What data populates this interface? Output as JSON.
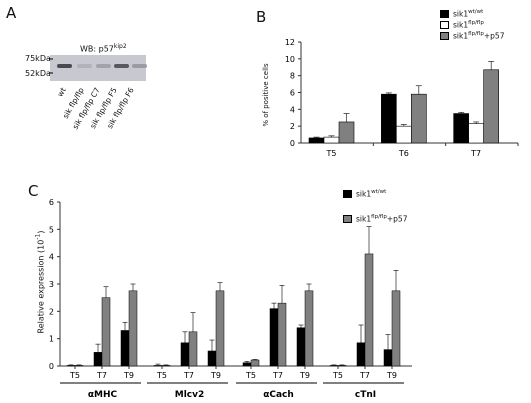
{
  "panel_letters": {
    "a": "A",
    "b": "B",
    "c": "C"
  },
  "blot": {
    "title": "WB: p57",
    "title_sup": "kip2",
    "markers": [
      "75kDa",
      "52kDa"
    ],
    "lanes": [
      "wt",
      "sik flp/flp",
      "sik flp/flp C7",
      "sik flp/flp F5",
      "sik flp/flp F6"
    ],
    "band_intensity": [
      0.85,
      0.15,
      0.25,
      0.75,
      0.3
    ]
  },
  "chart_data": [
    {
      "type": "bar",
      "panel": "B",
      "categories": [
        "T5",
        "T6",
        "T7"
      ],
      "ylabel": "% of positive cells",
      "ylim": [
        0,
        12
      ],
      "yticks": [
        0,
        2,
        4,
        6,
        8,
        10,
        12
      ],
      "legend_position": "top-right",
      "series": [
        {
          "name": "sik1",
          "sup": "wt/wt",
          "suffix": "",
          "color": "#000000",
          "values": [
            0.6,
            5.8,
            3.5
          ],
          "errors": [
            0.1,
            0.15,
            0.15
          ]
        },
        {
          "name": "sik1",
          "sup": "flp/flp",
          "suffix": "",
          "color": "#ffffff",
          "values": [
            0.7,
            2.0,
            2.3
          ],
          "errors": [
            0.15,
            0.2,
            0.2
          ]
        },
        {
          "name": "sik1",
          "sup": "flp/flp",
          "suffix": "+p57",
          "color": "#808080",
          "values": [
            2.5,
            5.8,
            8.7
          ],
          "errors": [
            1.0,
            1.0,
            1.0
          ]
        }
      ]
    },
    {
      "type": "bar",
      "panel": "C",
      "groups": [
        {
          "name": "αMHC",
          "categories": [
            "T5",
            "T7",
            "T9"
          ]
        },
        {
          "name": "Mlcv2",
          "categories": [
            "T5",
            "T7",
            "T9"
          ]
        },
        {
          "name": "αCach",
          "categories": [
            "T5",
            "T7",
            "T9"
          ]
        },
        {
          "name": "cTnI",
          "categories": [
            "T5",
            "T7",
            "T9"
          ]
        }
      ],
      "ylabel": "Relative expression (10",
      "ylabel_sup": "-1",
      "ylabel_end": ")",
      "ylim": [
        0,
        6
      ],
      "yticks": [
        0,
        1,
        2,
        3,
        4,
        5,
        6
      ],
      "legend_position": "top-right",
      "series": [
        {
          "name": "sik1",
          "sup": "wt/wt",
          "suffix": "",
          "color": "#000000",
          "values": [
            0.02,
            0.5,
            1.3,
            0.02,
            0.85,
            0.55,
            0.12,
            2.1,
            1.4,
            0.02,
            0.85,
            0.6
          ],
          "errors": [
            0.02,
            0.3,
            0.3,
            0.05,
            0.4,
            0.4,
            0.05,
            0.2,
            0.1,
            0.02,
            0.65,
            0.55
          ]
        },
        {
          "name": "sik1",
          "sup": "flp/flp",
          "suffix": "+p57",
          "color": "#808080",
          "values": [
            0.02,
            2.5,
            2.75,
            0.02,
            1.25,
            2.75,
            0.22,
            2.3,
            2.75,
            0.02,
            4.1,
            2.75
          ],
          "errors": [
            0.02,
            0.4,
            0.25,
            0.02,
            0.7,
            0.3,
            0.02,
            0.65,
            0.25,
            0.02,
            1.0,
            0.75
          ]
        }
      ]
    }
  ]
}
